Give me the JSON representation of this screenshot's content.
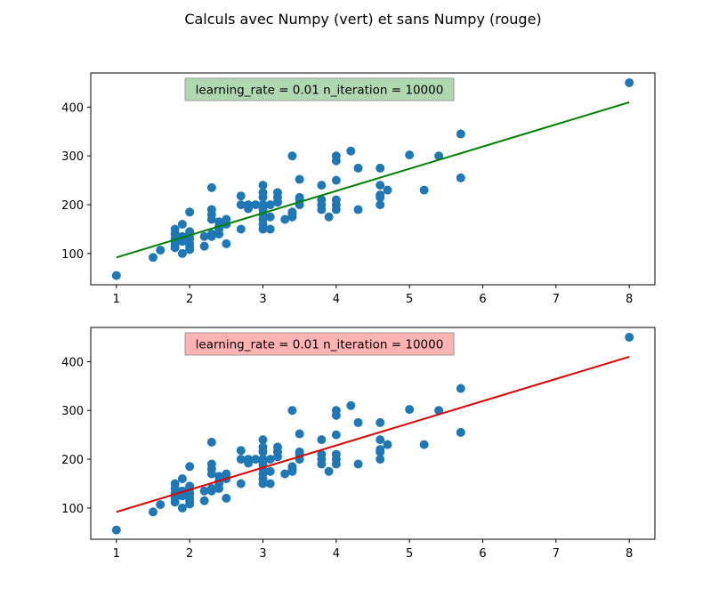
{
  "figure": {
    "title": "Calculs avec Numpy (vert) et sans Numpy (rouge)"
  },
  "chart_data": [
    {
      "type": "scatter",
      "title": "",
      "xlabel": "",
      "ylabel": "",
      "xlim": [
        0.65,
        8.35
      ],
      "ylim": [
        36,
        470
      ],
      "xticks": [
        1,
        2,
        3,
        4,
        5,
        6,
        7,
        8
      ],
      "yticks": [
        100,
        200,
        300,
        400
      ],
      "grid": false,
      "annotation": {
        "text": "learning_rate = 0.01  n_iteration = 10000",
        "box_color": "#b0d8b0"
      },
      "series": [
        {
          "kind": "points",
          "color": "#1f77b4",
          "x": [
            1.0,
            1.5,
            1.6,
            1.8,
            1.8,
            1.8,
            1.8,
            1.8,
            1.9,
            1.9,
            1.9,
            1.9,
            1.9,
            2.0,
            2.0,
            2.0,
            2.0,
            2.0,
            2.0,
            2.0,
            2.2,
            2.2,
            2.3,
            2.3,
            2.3,
            2.3,
            2.3,
            2.3,
            2.4,
            2.4,
            2.4,
            2.4,
            2.5,
            2.5,
            2.5,
            2.7,
            2.7,
            2.7,
            2.8,
            2.8,
            2.9,
            3.0,
            3.0,
            3.0,
            3.0,
            3.0,
            3.0,
            3.0,
            3.0,
            3.0,
            3.0,
            3.1,
            3.1,
            3.1,
            3.2,
            3.2,
            3.2,
            3.3,
            3.4,
            3.4,
            3.4,
            3.4,
            3.5,
            3.5,
            3.5,
            3.5,
            3.8,
            3.8,
            3.8,
            3.8,
            3.9,
            4.0,
            4.0,
            4.0,
            4.0,
            4.0,
            4.0,
            4.2,
            4.3,
            4.3,
            4.6,
            4.6,
            4.6,
            4.6,
            4.6,
            4.7,
            5.0,
            5.2,
            5.4,
            5.7,
            5.7,
            8.0
          ],
          "y": [
            55,
            92,
            107,
            150,
            140,
            130,
            120,
            112,
            160,
            135,
            130,
            125,
            100,
            185,
            145,
            140,
            130,
            120,
            115,
            108,
            135,
            115,
            235,
            190,
            180,
            170,
            140,
            135,
            165,
            155,
            150,
            140,
            170,
            160,
            120,
            218,
            200,
            150,
            200,
            192,
            200,
            240,
            225,
            215,
            200,
            180,
            170,
            160,
            150,
            200,
            190,
            200,
            175,
            150,
            225,
            215,
            205,
            170,
            300,
            185,
            180,
            175,
            252,
            215,
            210,
            200,
            240,
            210,
            200,
            190,
            175,
            300,
            290,
            250,
            210,
            200,
            190,
            310,
            275,
            190,
            275,
            240,
            220,
            215,
            200,
            230,
            302,
            230,
            300,
            345,
            255,
            450
          ]
        },
        {
          "kind": "regression-line",
          "color": "#008000",
          "x": [
            1,
            8
          ],
          "y": [
            92,
            410
          ]
        }
      ]
    },
    {
      "type": "scatter",
      "title": "",
      "xlabel": "",
      "ylabel": "",
      "xlim": [
        0.65,
        8.35
      ],
      "ylim": [
        36,
        470
      ],
      "xticks": [
        1,
        2,
        3,
        4,
        5,
        6,
        7,
        8
      ],
      "yticks": [
        100,
        200,
        300,
        400
      ],
      "grid": false,
      "annotation": {
        "text": "learning_rate = 0.01  n_iteration = 10000",
        "box_color": "#ffb3b3"
      },
      "series": [
        {
          "kind": "points",
          "color": "#1f77b4",
          "x": [
            1.0,
            1.5,
            1.6,
            1.8,
            1.8,
            1.8,
            1.8,
            1.8,
            1.9,
            1.9,
            1.9,
            1.9,
            1.9,
            2.0,
            2.0,
            2.0,
            2.0,
            2.0,
            2.0,
            2.0,
            2.2,
            2.2,
            2.3,
            2.3,
            2.3,
            2.3,
            2.3,
            2.3,
            2.4,
            2.4,
            2.4,
            2.4,
            2.5,
            2.5,
            2.5,
            2.7,
            2.7,
            2.7,
            2.8,
            2.8,
            2.9,
            3.0,
            3.0,
            3.0,
            3.0,
            3.0,
            3.0,
            3.0,
            3.0,
            3.0,
            3.0,
            3.1,
            3.1,
            3.1,
            3.2,
            3.2,
            3.2,
            3.3,
            3.4,
            3.4,
            3.4,
            3.4,
            3.5,
            3.5,
            3.5,
            3.5,
            3.8,
            3.8,
            3.8,
            3.8,
            3.9,
            4.0,
            4.0,
            4.0,
            4.0,
            4.0,
            4.0,
            4.2,
            4.3,
            4.3,
            4.6,
            4.6,
            4.6,
            4.6,
            4.6,
            4.7,
            5.0,
            5.2,
            5.4,
            5.7,
            5.7,
            8.0
          ],
          "y": [
            55,
            92,
            107,
            150,
            140,
            130,
            120,
            112,
            160,
            135,
            130,
            125,
            100,
            185,
            145,
            140,
            130,
            120,
            115,
            108,
            135,
            115,
            235,
            190,
            180,
            170,
            140,
            135,
            165,
            155,
            150,
            140,
            170,
            160,
            120,
            218,
            200,
            150,
            200,
            192,
            200,
            240,
            225,
            215,
            200,
            180,
            170,
            160,
            150,
            200,
            190,
            200,
            175,
            150,
            225,
            215,
            205,
            170,
            300,
            185,
            180,
            175,
            252,
            215,
            210,
            200,
            240,
            210,
            200,
            190,
            175,
            300,
            290,
            250,
            210,
            200,
            190,
            310,
            275,
            190,
            275,
            240,
            220,
            215,
            200,
            230,
            302,
            230,
            300,
            345,
            255,
            450
          ]
        },
        {
          "kind": "regression-line",
          "color": "#e00000",
          "x": [
            1,
            8
          ],
          "y": [
            92,
            410
          ]
        }
      ]
    }
  ]
}
